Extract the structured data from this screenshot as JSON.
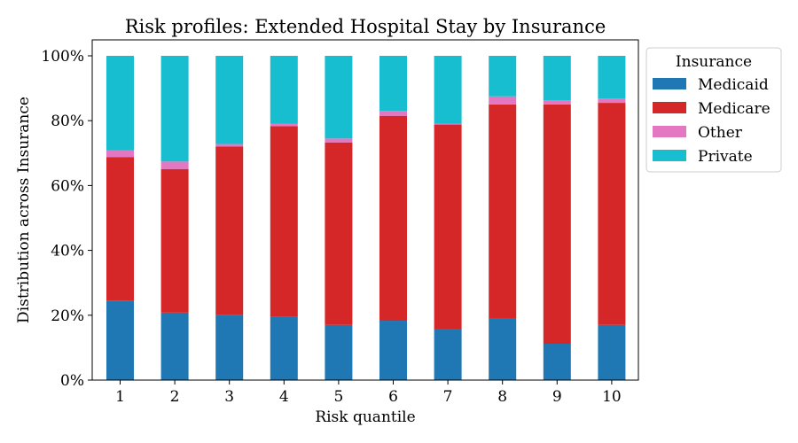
{
  "chart_data": {
    "type": "bar",
    "stacked": true,
    "title": "Risk profiles: Extended Hospital Stay by Insurance",
    "xlabel": "Risk quantile",
    "ylabel": "Distribution across Insurance",
    "categories": [
      "1",
      "2",
      "3",
      "4",
      "5",
      "6",
      "7",
      "8",
      "9",
      "10"
    ],
    "ylim": [
      0,
      1
    ],
    "yticks": [
      0,
      0.2,
      0.4,
      0.6,
      0.8,
      1.0
    ],
    "ytick_labels": [
      "0%",
      "20%",
      "40%",
      "60%",
      "80%",
      "100%"
    ],
    "legend": {
      "title": "Insurance",
      "placement": "outside-right-top"
    },
    "grid": false,
    "series": [
      {
        "name": "Medicaid",
        "color": "#1f77b4",
        "values": [
          0.245,
          0.208,
          0.2,
          0.195,
          0.17,
          0.183,
          0.157,
          0.19,
          0.112,
          0.17
        ]
      },
      {
        "name": "Medicare",
        "color": "#d62728",
        "values": [
          0.443,
          0.443,
          0.52,
          0.588,
          0.563,
          0.632,
          0.631,
          0.66,
          0.738,
          0.685
        ]
      },
      {
        "name": "Other",
        "color": "#e377c2",
        "values": [
          0.02,
          0.023,
          0.008,
          0.008,
          0.012,
          0.015,
          0.002,
          0.025,
          0.013,
          0.013
        ]
      },
      {
        "name": "Private",
        "color": "#17becf",
        "values": [
          0.292,
          0.326,
          0.272,
          0.209,
          0.255,
          0.17,
          0.21,
          0.125,
          0.137,
          0.132
        ]
      }
    ]
  }
}
